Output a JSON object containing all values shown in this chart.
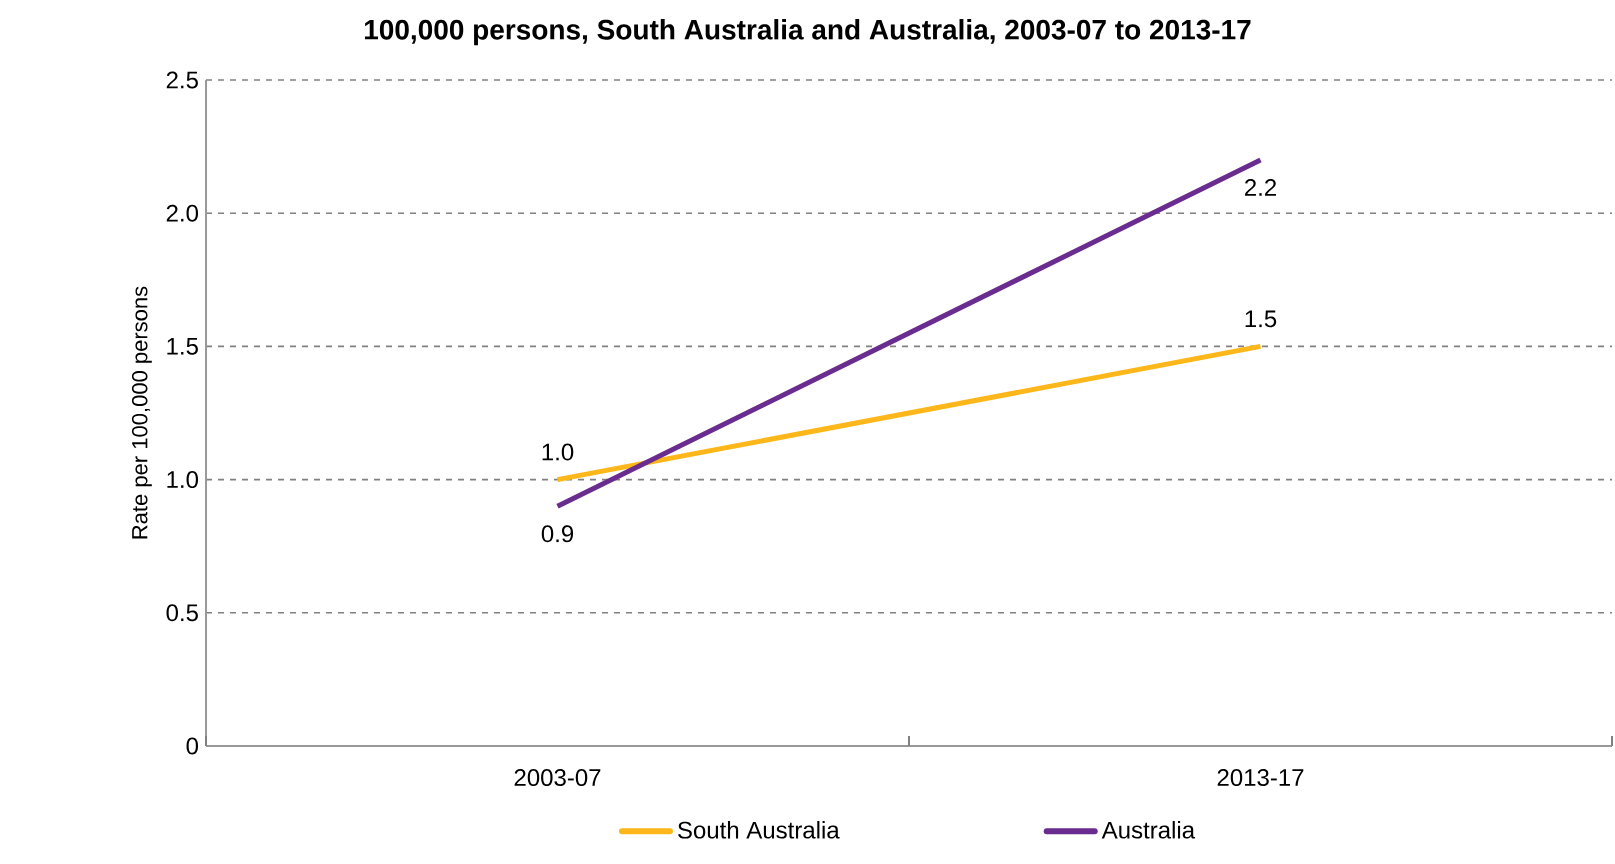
{
  "chart_data": {
    "type": "line",
    "title": "100,000 persons, South Australia and Australia, 2003-07 to 2013-17",
    "ylabel": "Rate per 100,000 persons",
    "categories": [
      "2003-07",
      "2013-17"
    ],
    "series": [
      {
        "name": "South Australia",
        "color": "#fdb71a",
        "values": [
          1.0,
          1.5
        ],
        "value_labels": [
          "1.0",
          "1.5"
        ]
      },
      {
        "name": "Australia",
        "color": "#6a2c8e",
        "values": [
          0.9,
          2.2
        ],
        "value_labels": [
          "0.9",
          "2.2"
        ]
      }
    ],
    "ylim": [
      0,
      2.5
    ],
    "yticks": [
      0,
      {
        "value": 0.5,
        "label": "0.5"
      },
      {
        "value": 1,
        "label": "1.0"
      },
      {
        "value": 1.5,
        "label": "1.5"
      },
      {
        "value": 2,
        "label": "2.0"
      },
      {
        "value": 2.5,
        "label": "2.5"
      }
    ],
    "grid": "y",
    "legend": "bottom",
    "marker": "none",
    "line_style": "solid"
  }
}
